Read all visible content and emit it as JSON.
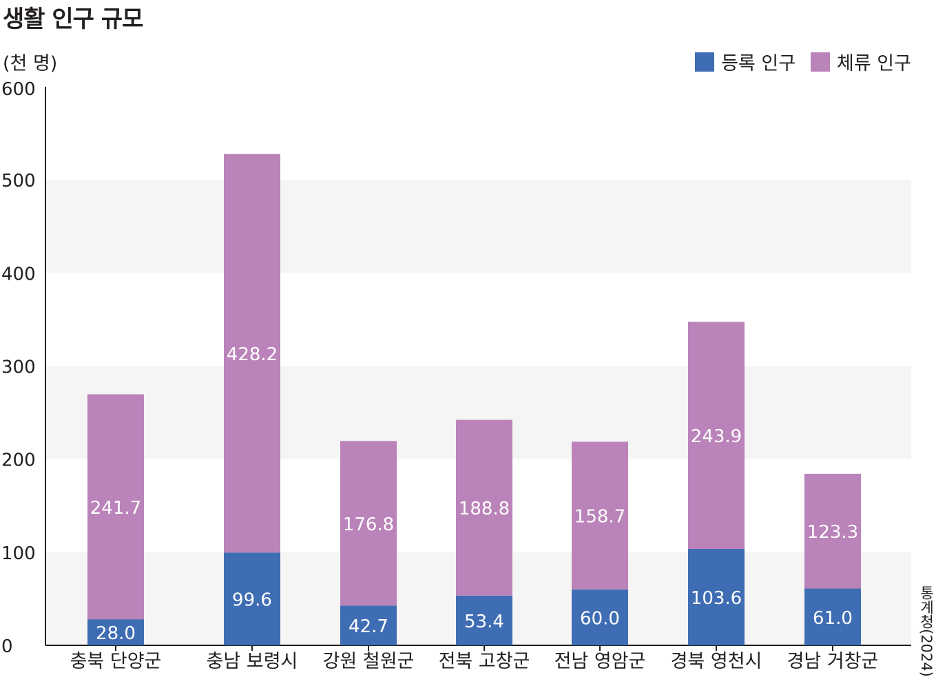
{
  "chart_data": {
    "type": "bar",
    "stacked": true,
    "title": "생활 인구 규모",
    "ylabel": "(천 명)",
    "source": "통계청(2024)",
    "ylim": [
      0,
      600
    ],
    "yticks": [
      "0",
      "100",
      "200",
      "300",
      "400",
      "500",
      "600"
    ],
    "categories": [
      "충북 단양군",
      "충남 보령시",
      "강원 철원군",
      "전북 고창군",
      "전남 영암군",
      "경북 영천시",
      "경남 거창군"
    ],
    "series": [
      {
        "name": "등록 인구",
        "color": "#3f6db4",
        "values": [
          28.0,
          99.6,
          42.7,
          53.4,
          60.0,
          103.6,
          61.0
        ],
        "labels": [
          "28.0",
          "99.6",
          "42.7",
          "53.4",
          "60.0",
          "103.6",
          "61.0"
        ]
      },
      {
        "name": "체류 인구",
        "color": "#ba83b9",
        "values": [
          241.7,
          428.2,
          176.8,
          188.8,
          158.7,
          243.9,
          123.3
        ],
        "labels": [
          "241.7",
          "428.2",
          "176.8",
          "188.8",
          "158.7",
          "243.9",
          "123.3"
        ]
      }
    ],
    "grid": "alternating horizontal bands",
    "legend_position": "top-right"
  }
}
